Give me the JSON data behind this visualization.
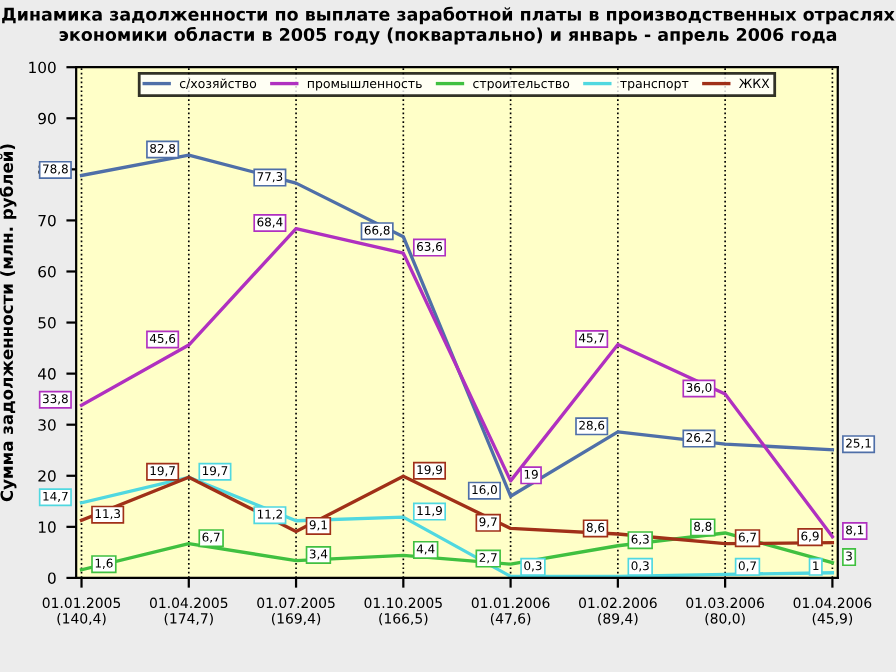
{
  "chart_data": {
    "type": "line",
    "title": "Динамика задолженности по выплате заработной платы в производственных отраслях экономики области в 2005 году (поквартально) и январь - апрель 2006 года",
    "ylabel": "Сумма задолженности (млн. рублей)",
    "categories": [
      "01.01.2005\n(140,4)",
      "01.04.2005\n(174,7)",
      "01.07.2005\n(169,4)",
      "01.10.2005\n(166,5)",
      "01.01.2006\n(47,6)",
      "01.02.2006\n(89,4)",
      "01.03.2006\n(80,0)",
      "01.04.2006\n(45,9)"
    ],
    "series": [
      {
        "name": "с/хозяйство",
        "color": "#4f6fa8",
        "values": [
          78.8,
          82.8,
          77.3,
          66.8,
          16.0,
          28.6,
          26.2,
          25.1
        ],
        "value_labels": [
          "78,8",
          "82,8",
          "77,3",
          "66,8",
          "16,0",
          "28,6",
          "26,2",
          "25,1"
        ]
      },
      {
        "name": "промышленность",
        "color": "#b030c0",
        "values": [
          33.8,
          45.6,
          68.4,
          63.6,
          19,
          45.7,
          36.0,
          8.1
        ],
        "value_labels": [
          "33,8",
          "45,6",
          "68,4",
          "63,6",
          "19",
          "45,7",
          "36,0",
          "8,1"
        ]
      },
      {
        "name": "строительство",
        "color": "#40c040",
        "values": [
          1.6,
          6.7,
          3.4,
          4.4,
          2.7,
          6.3,
          8.8,
          3
        ],
        "value_labels": [
          "1,6",
          "6,7",
          "3,4",
          "4,4",
          "2,7",
          "6,3",
          "8,8",
          "3"
        ]
      },
      {
        "name": "транспорт",
        "color": "#50d8e0",
        "values": [
          14.7,
          19.7,
          11.2,
          11.9,
          0.3,
          0.3,
          0.7,
          1
        ],
        "value_labels": [
          "14,7",
          "19,7",
          "11,2",
          "11,9",
          "0,3",
          "0,3",
          "0,7",
          "1"
        ]
      },
      {
        "name": "ЖКХ",
        "color": "#a03018",
        "values": [
          11.3,
          19.7,
          9.1,
          19.9,
          9.7,
          8.6,
          6.7,
          6.9
        ],
        "value_labels": [
          "11,3",
          "19,7",
          "9,1",
          "19,9",
          "9,7",
          "8,6",
          "6,7",
          "6,9"
        ]
      }
    ],
    "ylim": [
      0,
      100
    ],
    "yticks": [
      0,
      10,
      20,
      30,
      40,
      50,
      60,
      70,
      80,
      90,
      100
    ],
    "grid": "x",
    "legend": "top",
    "marker": "none",
    "line_style": "solid"
  }
}
